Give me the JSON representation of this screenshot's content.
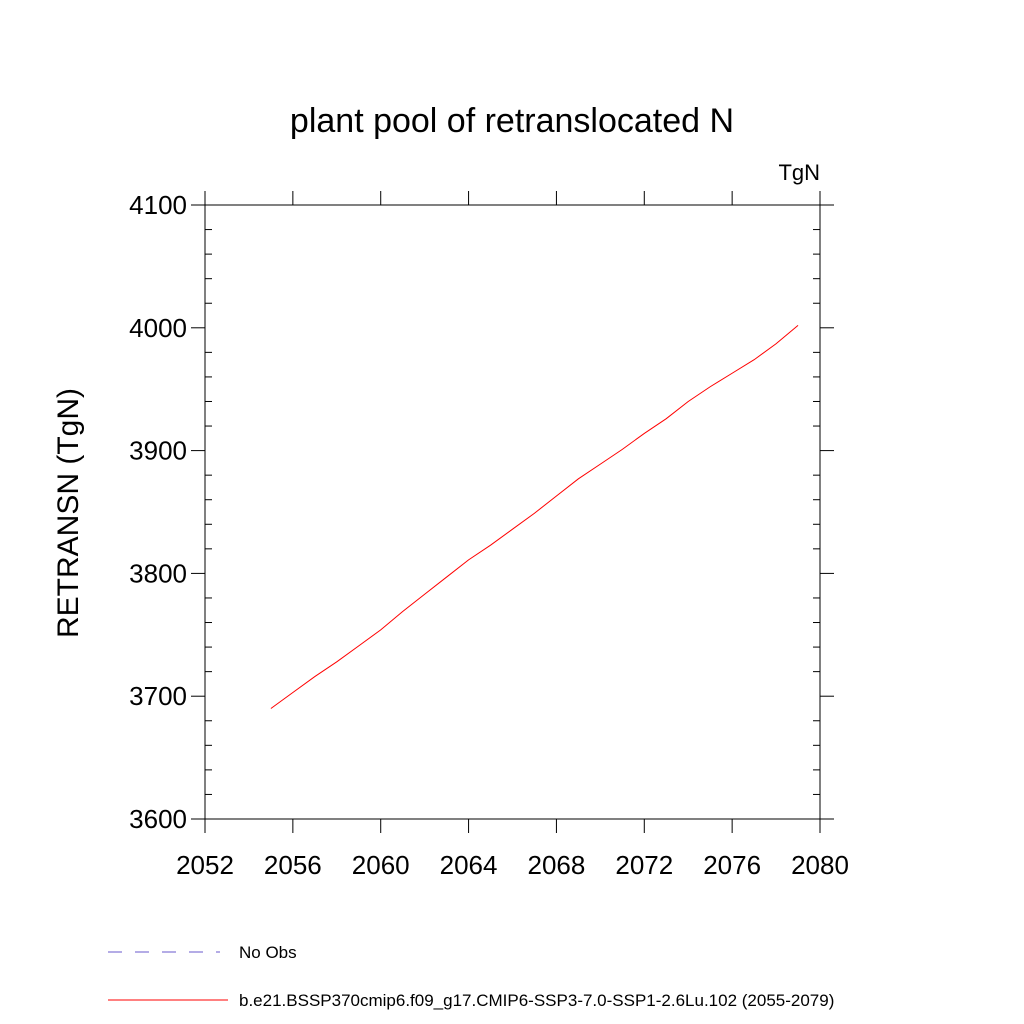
{
  "chart_data": {
    "type": "line",
    "title": "plant pool of retranslocated N",
    "units_label": "TgN",
    "ylabel": "RETRANSN  (TgN)",
    "xlabel": "",
    "xlim": [
      2052,
      2080
    ],
    "ylim": [
      3600,
      4100
    ],
    "x_ticks": [
      2052,
      2056,
      2060,
      2064,
      2068,
      2072,
      2076,
      2080
    ],
    "x_tick_labels": [
      "2052",
      "2056",
      "2060",
      "2064",
      "2068",
      "2072",
      "2076",
      "2080"
    ],
    "y_ticks": [
      3600,
      3700,
      3800,
      3900,
      4000,
      4100
    ],
    "y_tick_labels": [
      "3600",
      "3700",
      "3800",
      "3900",
      "4000",
      "4100"
    ],
    "grid": false,
    "legend_position": "bottom-left",
    "series": [
      {
        "name": "b.e21.BSSP370cmip6.f09_g17.CMIP6-SSP3-7.0-SSP1-2.6Lu.102 (2055-2079)",
        "color": "#ff0000",
        "style": "solid",
        "x": [
          2055,
          2056,
          2057,
          2058,
          2059,
          2060,
          2061,
          2062,
          2063,
          2064,
          2065,
          2066,
          2067,
          2068,
          2069,
          2070,
          2071,
          2072,
          2073,
          2074,
          2075,
          2076,
          2077,
          2078,
          2079
        ],
        "y": [
          3690,
          3703,
          3716,
          3728,
          3741,
          3754,
          3769,
          3783,
          3797,
          3811,
          3823,
          3836,
          3849,
          3863,
          3877,
          3889,
          3901,
          3914,
          3926,
          3940,
          3952,
          3963,
          3974,
          3987,
          4002
        ]
      }
    ],
    "legend": [
      {
        "label": "No Obs",
        "color": "#6a5acd",
        "style": "dashed"
      },
      {
        "label": "b.e21.BSSP370cmip6.f09_g17.CMIP6-SSP3-7.0-SSP1-2.6Lu.102 (2055-2079)",
        "color": "#ff0000",
        "style": "solid"
      }
    ]
  }
}
